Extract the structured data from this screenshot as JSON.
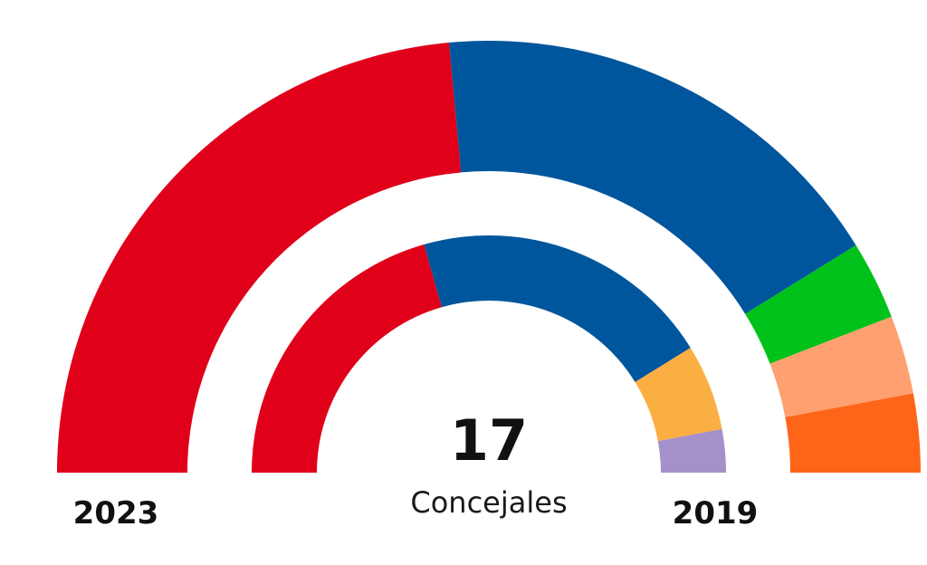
{
  "chart_data": {
    "type": "parliament-semicircle",
    "total_seats": "17",
    "unit_label": "Concejales",
    "rings": [
      {
        "name": "outer",
        "year_label": "2023",
        "series": [
          {
            "party": "red",
            "seats": 8,
            "color": "#E0001A"
          },
          {
            "party": "blue",
            "seats": 6,
            "color": "#00569C"
          },
          {
            "party": "green",
            "seats": 1,
            "color": "#00C21A"
          },
          {
            "party": "salmon",
            "seats": 1,
            "color": "#FFA070"
          },
          {
            "party": "orange",
            "seats": 1,
            "color": "#FF6519"
          }
        ]
      },
      {
        "name": "inner",
        "year_label": "2019",
        "series": [
          {
            "party": "red",
            "seats": 7,
            "color": "#E0001A"
          },
          {
            "party": "blue",
            "seats": 7,
            "color": "#00569C"
          },
          {
            "party": "yellow",
            "seats": 2,
            "color": "#FBAE42"
          },
          {
            "party": "purple",
            "seats": 1,
            "color": "#A491C9"
          }
        ]
      }
    ]
  }
}
